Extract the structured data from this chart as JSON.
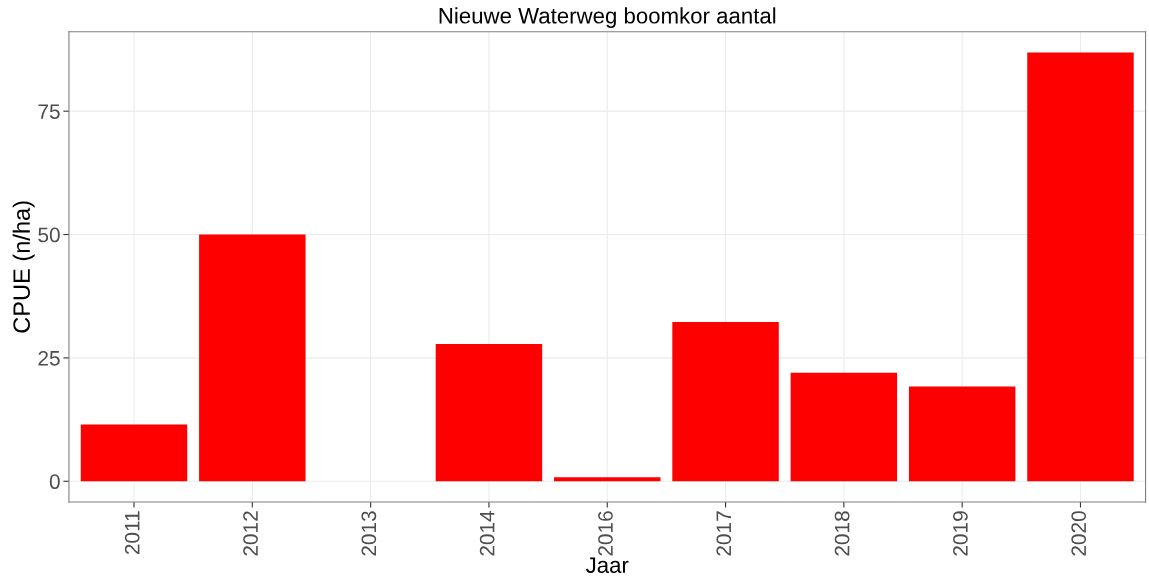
{
  "chart_data": {
    "type": "bar",
    "title": "Nieuwe Waterweg boomkor aantal",
    "xlabel": "Jaar",
    "ylabel": "CPUE (n/ha)",
    "categories": [
      "2011",
      "2012",
      "2013",
      "2014",
      "2016",
      "2017",
      "2018",
      "2019",
      "2020"
    ],
    "values": [
      11.5,
      50,
      0,
      27.8,
      0.8,
      32.3,
      22,
      19.2,
      86.9
    ],
    "color": "#ff0000",
    "ylim": [
      -4.2,
      91.1
    ],
    "yticks": [
      0,
      25,
      50,
      75
    ],
    "grid": true
  }
}
